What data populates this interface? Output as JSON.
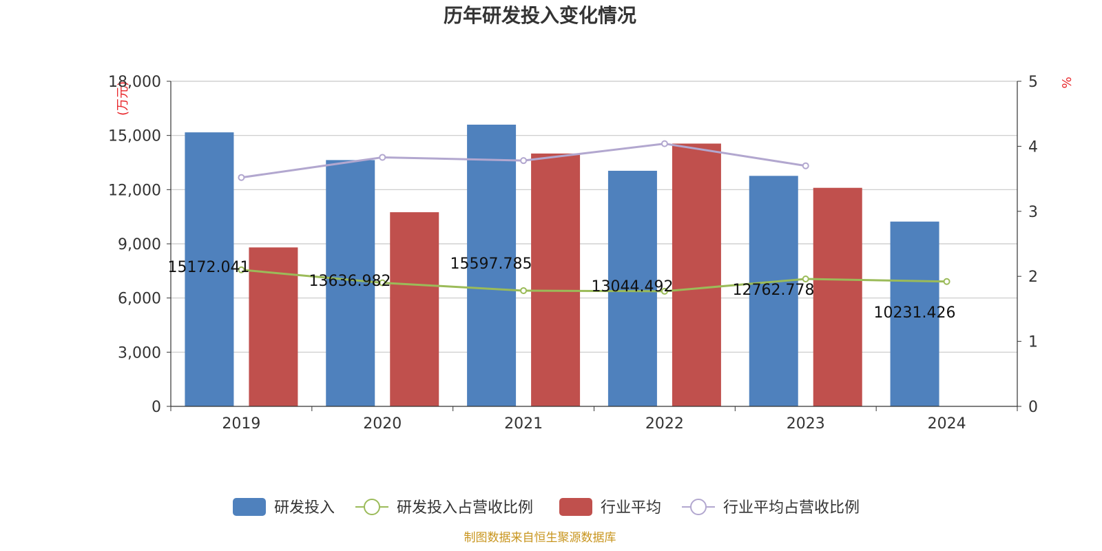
{
  "chart_data": {
    "type": "bar",
    "title": "历年研发投入变化情况",
    "categories": [
      "2019",
      "2020",
      "2021",
      "2022",
      "2023",
      "2024"
    ],
    "y_left": {
      "unit": "(万元)",
      "ylim": [
        0,
        18000
      ],
      "ticks": [
        0,
        3000,
        6000,
        9000,
        12000,
        15000,
        18000
      ],
      "tick_labels": [
        "0",
        "3,000",
        "6,000",
        "9,000",
        "12,000",
        "15,000",
        "18,000"
      ]
    },
    "y_right": {
      "unit": "%",
      "ylim": [
        0,
        5
      ],
      "ticks": [
        0,
        1,
        2,
        3,
        4,
        5
      ],
      "tick_labels": [
        "0",
        "1",
        "2",
        "3",
        "4",
        "5"
      ]
    },
    "grid": true,
    "legend_position": "bottom",
    "series": [
      {
        "name": "研发投入",
        "type": "bar",
        "axis": "left",
        "color": "#4f81bd",
        "values": [
          15172.041,
          13636.982,
          15597.785,
          13044.492,
          12762.778,
          10231.426
        ],
        "data_labels": [
          "15172.041",
          "13636.982",
          "15597.785",
          "13044.492",
          "12762.778",
          "10231.426"
        ]
      },
      {
        "name": "研发投入占营收比例",
        "type": "line",
        "axis": "right",
        "color": "#9bbb59",
        "values": [
          2.1,
          1.9,
          1.78,
          1.77,
          1.96,
          1.92
        ]
      },
      {
        "name": "行业平均",
        "type": "bar",
        "axis": "left",
        "color": "#c0504d",
        "values": [
          8800,
          10750,
          14000,
          14550,
          12100,
          null
        ]
      },
      {
        "name": "行业平均占营收比例",
        "type": "line",
        "axis": "right",
        "color": "#b2a7cf",
        "values": [
          3.52,
          3.83,
          3.78,
          4.04,
          3.7,
          null
        ]
      }
    ],
    "source": "制图数据来自恒生聚源数据库"
  }
}
